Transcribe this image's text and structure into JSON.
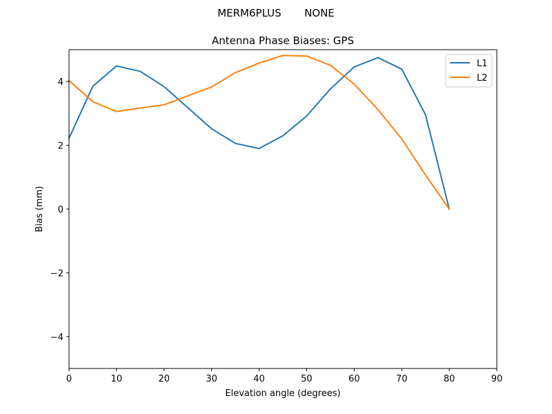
{
  "figure": {
    "suptitle": "MERM6PLUS       NONE"
  },
  "chart_data": {
    "type": "line",
    "title": "Antenna Phase Biases: GPS",
    "xlabel": "Elevation angle (degrees)",
    "ylabel": "Bias (mm)",
    "xlim": [
      0,
      90
    ],
    "ylim": [
      -5,
      5
    ],
    "xticks": [
      0,
      10,
      20,
      30,
      40,
      50,
      60,
      70,
      80,
      90
    ],
    "yticks": [
      -4,
      -2,
      0,
      2,
      4
    ],
    "xtick_labels": [
      "0",
      "10",
      "20",
      "30",
      "40",
      "50",
      "60",
      "70",
      "80",
      "90"
    ],
    "ytick_labels": [
      "−4",
      "−2",
      "0",
      "2",
      "4"
    ],
    "grid": false,
    "legend_position": "top-right",
    "x": [
      0,
      5,
      10,
      15,
      20,
      25,
      30,
      35,
      40,
      45,
      50,
      55,
      60,
      65,
      70,
      75,
      80
    ],
    "series": [
      {
        "name": "L1",
        "color": "#1f77b4",
        "values": [
          2.22,
          3.85,
          4.49,
          4.32,
          3.84,
          3.18,
          2.52,
          2.06,
          1.9,
          2.3,
          2.92,
          3.77,
          4.46,
          4.75,
          4.39,
          2.96,
          0.0
        ]
      },
      {
        "name": "L2",
        "color": "#ff7f0e",
        "values": [
          4.03,
          3.37,
          3.06,
          3.17,
          3.27,
          3.55,
          3.83,
          4.28,
          4.58,
          4.82,
          4.8,
          4.51,
          3.92,
          3.12,
          2.2,
          1.07,
          0.0
        ]
      }
    ]
  }
}
